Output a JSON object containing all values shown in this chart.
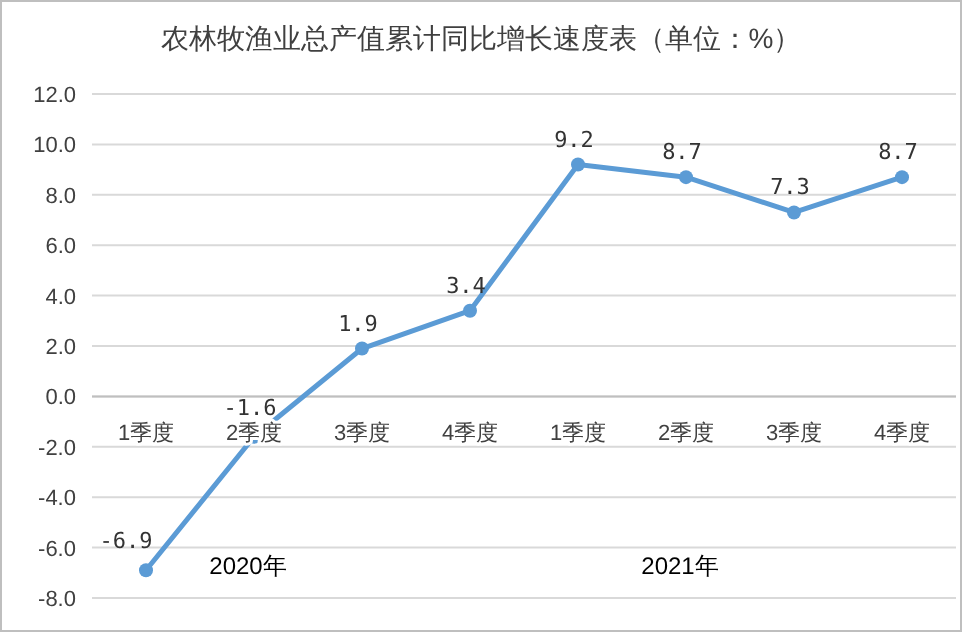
{
  "chart_data": {
    "type": "line",
    "title": "农林牧渔业总产值累计同比增长速度表（单位：%）",
    "categories": [
      "1季度",
      "2季度",
      "3季度",
      "4季度",
      "1季度",
      "2季度",
      "3季度",
      "4季度"
    ],
    "series": [
      {
        "color": "#5b9bd5",
        "values": [
          -6.9,
          -1.6,
          1.9,
          3.4,
          9.2,
          8.7,
          7.3,
          8.7
        ]
      }
    ],
    "ylim": [
      -8,
      12
    ],
    "yticks": [
      {
        "value": -8,
        "label": "-8.0"
      },
      {
        "value": -6,
        "label": "-6.0"
      },
      {
        "value": -4,
        "label": "-4.0"
      },
      {
        "value": -2,
        "label": "-2.0"
      },
      {
        "value": 0,
        "label": "0.0"
      },
      {
        "value": 2,
        "label": "2.0"
      },
      {
        "value": 4,
        "label": "4.0"
      },
      {
        "value": 6,
        "label": "6.0"
      },
      {
        "value": 8,
        "label": "8.0"
      },
      {
        "value": 10,
        "label": "10.0"
      },
      {
        "value": 12,
        "label": "12.0"
      }
    ],
    "grid": "y",
    "marker": "circle",
    "line_style": "solid",
    "data_labels": true,
    "annotations": [
      "2020年",
      "2021年"
    ]
  }
}
